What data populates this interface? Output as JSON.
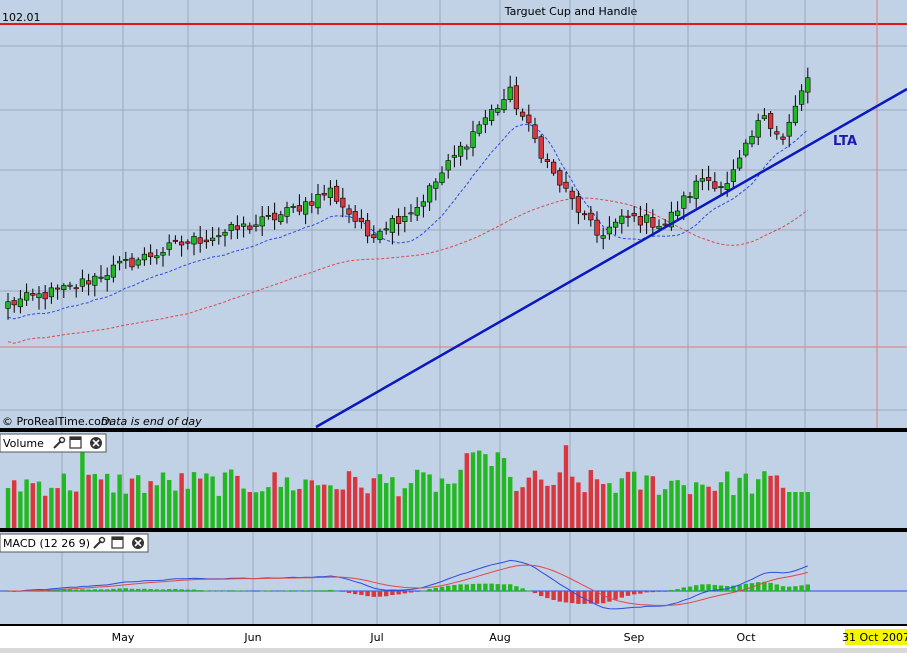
{
  "header": {
    "title": "Targuet Cup and Handle",
    "level_label": "102.01"
  },
  "annotations": {
    "trendline_label": "LTA"
  },
  "footer": {
    "source": "© ProRealTime.com",
    "note": "Data is end of day"
  },
  "panels": {
    "volume": {
      "label": "Volume"
    },
    "macd": {
      "label": "MACD (12 26 9)"
    }
  },
  "xaxis": {
    "months": [
      "May",
      "Jun",
      "Jul",
      "Aug",
      "Sep",
      "Oct"
    ],
    "current_date": "31 Oct 2007"
  },
  "icons": [
    "wrench-icon",
    "window-icon",
    "close-icon"
  ],
  "colors": {
    "panel_bg": "#c1d1e6",
    "grid": "#9aa9bd",
    "up": "#22b822",
    "down": "#d9363e",
    "resistance": "#e01818",
    "trendline": "#0a18c0",
    "ma_short": "#2a4ce0",
    "ma_long": "#e04848",
    "macd_line": "#2a4ce0",
    "signal_line": "#e04848",
    "date_highlight": "#f5f500"
  },
  "chart_data": {
    "type": "candlestick",
    "title": "Targuet Cup and Handle",
    "resistance_level": 102.01,
    "trendline_label": "LTA",
    "months": [
      "May",
      "Jun",
      "Jul",
      "Aug",
      "Sep",
      "Oct"
    ],
    "candle_count": 130,
    "price_range": [
      84.7,
      104.0
    ],
    "anchor_closes": [
      {
        "i": 0,
        "close": 90.3
      },
      {
        "i": 10,
        "close": 91.0
      },
      {
        "i": 18,
        "close": 92.0
      },
      {
        "i": 28,
        "close": 93.0
      },
      {
        "i": 40,
        "close": 93.9
      },
      {
        "i": 44,
        "close": 94.3
      },
      {
        "i": 52,
        "close": 95.4
      },
      {
        "i": 58,
        "close": 93.4
      },
      {
        "i": 66,
        "close": 94.7
      },
      {
        "i": 76,
        "close": 98.4
      },
      {
        "i": 81,
        "close": 99.8
      },
      {
        "i": 88,
        "close": 96.1
      },
      {
        "i": 95,
        "close": 93.4
      },
      {
        "i": 100,
        "close": 94.2
      },
      {
        "i": 106,
        "close": 93.9
      },
      {
        "i": 112,
        "close": 96.0
      },
      {
        "i": 116,
        "close": 95.6
      },
      {
        "i": 122,
        "close": 98.9
      },
      {
        "i": 125,
        "close": 97.7
      },
      {
        "i": 129,
        "close": 100.5
      }
    ],
    "volume_peaks": [
      "mid-May",
      "late Jul",
      "mid-Aug"
    ],
    "macd": {
      "parameters": "12 26 9",
      "range": [
        -1.0,
        1.5
      ]
    },
    "current_date": "31 Oct 2007",
    "footer_note": "Data is end of day"
  }
}
